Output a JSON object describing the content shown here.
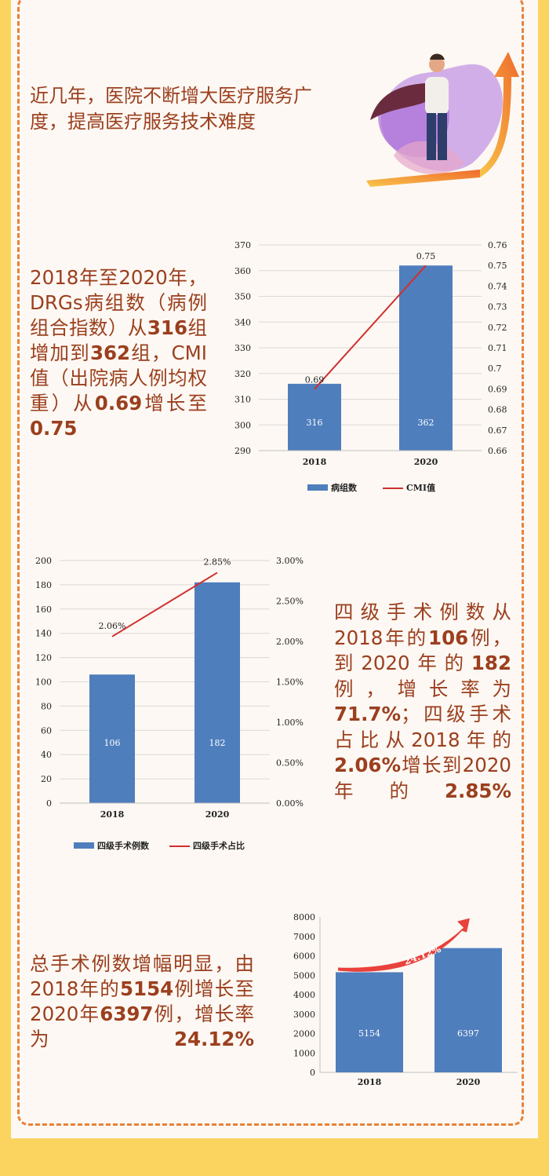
{
  "intro": {
    "text": "近几年，医院不断增大医疗服务广度，提高医疗服务技术难度"
  },
  "illustration": {
    "icon": "businessman-with-cape-and-rising-arrow-icon"
  },
  "section1": {
    "text_parts": [
      {
        "t": "2018年至2020年，DRGs病组数（病例组合指数）从",
        "b": false
      },
      {
        "t": "316",
        "b": true
      },
      {
        "t": "组增加到",
        "b": false
      },
      {
        "t": "362",
        "b": true
      },
      {
        "t": "组，CMI值（出院病人例均权重）从",
        "b": false
      },
      {
        "t": "0.69",
        "b": true
      },
      {
        "t": "增长至",
        "b": false
      },
      {
        "t": "0.75",
        "b": true
      }
    ]
  },
  "section2": {
    "text_parts": [
      {
        "t": "四级手术例数从2018年的",
        "b": false
      },
      {
        "t": "106",
        "b": true
      },
      {
        "t": "例，到2020年的",
        "b": false
      },
      {
        "t": "182",
        "b": true
      },
      {
        "t": "例，增长率为",
        "b": false
      },
      {
        "t": "71.7%",
        "b": true
      },
      {
        "t": "；四级手术占比从2018年的",
        "b": false
      },
      {
        "t": "2.06%",
        "b": true
      },
      {
        "t": "增长到2020年的",
        "b": false
      },
      {
        "t": "2.85%",
        "b": true
      }
    ]
  },
  "section3": {
    "text_parts": [
      {
        "t": "总手术例数增幅明显，由2018年的",
        "b": false
      },
      {
        "t": "5154",
        "b": true
      },
      {
        "t": "例增长至2020年",
        "b": false
      },
      {
        "t": "6397",
        "b": true
      },
      {
        "t": "例，增长率为",
        "b": false
      },
      {
        "t": "24.12%",
        "b": true
      }
    ]
  },
  "colors": {
    "bar": "#4F7EBD",
    "line": "#D0302F",
    "text": "#9B3F1E",
    "border": "#E8823A",
    "bg": "#FDF8F3",
    "frame": "#FBD460"
  },
  "chart_data": [
    {
      "type": "bar+line",
      "categories": [
        "2018",
        "2020"
      ],
      "series": [
        {
          "name": "病组数",
          "kind": "bar",
          "values": [
            316,
            362
          ],
          "axis": "left"
        },
        {
          "name": "CMI值",
          "kind": "line",
          "values": [
            0.69,
            0.75
          ],
          "axis": "right"
        }
      ],
      "data_labels_bar": [
        "316",
        "362"
      ],
      "data_labels_line": [
        "0.69",
        "0.75"
      ],
      "y_left": {
        "min": 290,
        "max": 370,
        "ticks": [
          "290",
          "300",
          "310",
          "320",
          "330",
          "340",
          "350",
          "360",
          "370"
        ]
      },
      "y_right": {
        "min": 0.66,
        "max": 0.76,
        "ticks": [
          "0.66",
          "0.67",
          "0.68",
          "0.69",
          "0.7",
          "0.71",
          "0.72",
          "0.73",
          "0.74",
          "0.75",
          "0.76"
        ]
      },
      "legend": "bottom"
    },
    {
      "type": "bar+line",
      "categories": [
        "2018",
        "2020"
      ],
      "series": [
        {
          "name": "四级手术例数",
          "kind": "bar",
          "values": [
            106,
            182
          ],
          "axis": "left"
        },
        {
          "name": "四级手术占比",
          "kind": "line",
          "values": [
            2.06,
            2.85
          ],
          "axis": "right"
        }
      ],
      "data_labels_bar": [
        "106",
        "182"
      ],
      "data_labels_line": [
        "2.06%",
        "2.85%"
      ],
      "y_left": {
        "min": 0,
        "max": 200,
        "ticks": [
          "0",
          "20",
          "40",
          "60",
          "80",
          "100",
          "120",
          "140",
          "160",
          "180",
          "200"
        ]
      },
      "y_right": {
        "min": 0,
        "max": 3,
        "ticks": [
          "0.00%",
          "0.50%",
          "1.00%",
          "1.50%",
          "2.00%",
          "2.50%",
          "3.00%"
        ]
      },
      "legend": "bottom"
    },
    {
      "type": "bar",
      "categories": [
        "2018",
        "2020"
      ],
      "values": [
        5154,
        6397
      ],
      "data_labels": [
        "5154",
        "6397"
      ],
      "annotation": "24.12%",
      "y_left": {
        "min": 0,
        "max": 8000,
        "ticks": [
          "0",
          "1000",
          "2000",
          "3000",
          "4000",
          "5000",
          "6000",
          "7000",
          "8000"
        ]
      }
    }
  ]
}
